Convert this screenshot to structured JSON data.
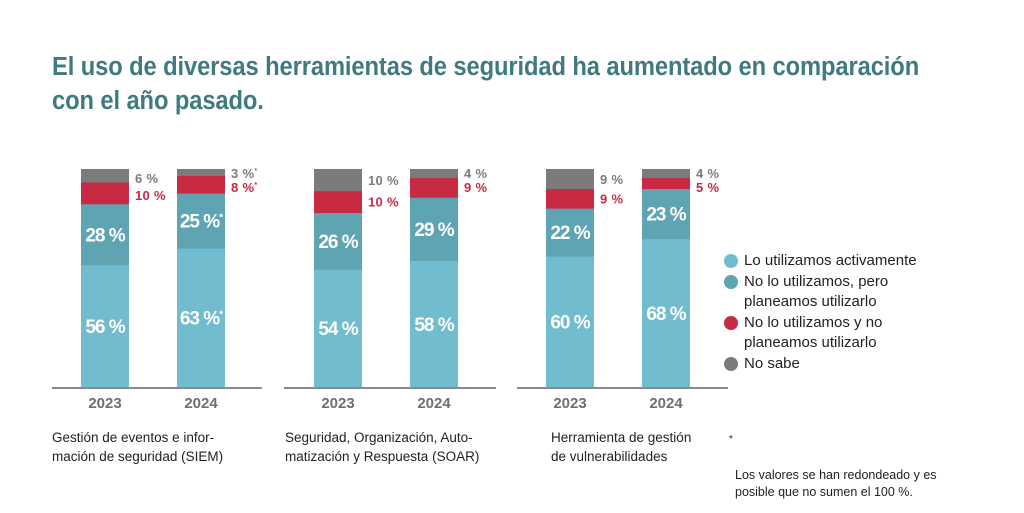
{
  "title": "El uso de diversas herramientas de seguridad ha aumentado en comparación con el año pasado.",
  "colors": {
    "title": "#3f7a80",
    "active": "#72bccf",
    "planned": "#5ea4b3",
    "not_planned": "#c92a43",
    "unknown": "#7b7b7b",
    "axis": "#8a8a8a",
    "year_label": "#6e6e6e"
  },
  "chart_data": [
    {
      "type": "bar",
      "stacked": true,
      "title": "Gestión de eventos e información de seguridad (SIEM)",
      "categories": [
        "2023",
        "2024"
      ],
      "series": [
        {
          "name": "Lo utilizamos activamente",
          "values": [
            56,
            63
          ],
          "labels": [
            "56 %",
            "63 %*"
          ]
        },
        {
          "name": "No lo utilizamos, pero planeamos utilizarlo",
          "values": [
            28,
            25
          ],
          "labels": [
            "28 %",
            "25 %*"
          ]
        },
        {
          "name": "No lo utilizamos y no planeamos utilizarlo",
          "values": [
            10,
            8
          ],
          "labels": [
            "10 %",
            "8 %*"
          ]
        },
        {
          "name": "No sabe",
          "values": [
            6,
            3
          ],
          "labels": [
            "6 %",
            "3 %*"
          ]
        }
      ],
      "ylim": [
        0,
        100
      ]
    },
    {
      "type": "bar",
      "stacked": true,
      "title": "Seguridad, Organización, Automatización y Respuesta (SOAR)",
      "categories": [
        "2023",
        "2024"
      ],
      "series": [
        {
          "name": "Lo utilizamos activamente",
          "values": [
            54,
            58
          ],
          "labels": [
            "54 %",
            "58 %"
          ]
        },
        {
          "name": "No lo utilizamos, pero planeamos utilizarlo",
          "values": [
            26,
            29
          ],
          "labels": [
            "26 %",
            "29 %"
          ]
        },
        {
          "name": "No lo utilizamos y no planeamos utilizarlo",
          "values": [
            10,
            9
          ],
          "labels": [
            "10 %",
            "9 %"
          ]
        },
        {
          "name": "No sabe",
          "values": [
            10,
            4
          ],
          "labels": [
            "10 %",
            "4 %"
          ]
        }
      ],
      "ylim": [
        0,
        100
      ]
    },
    {
      "type": "bar",
      "stacked": true,
      "title": "Herramienta de gestión de vulnerabilidades",
      "categories": [
        "2023",
        "2024"
      ],
      "series": [
        {
          "name": "Lo utilizamos activamente",
          "values": [
            60,
            68
          ],
          "labels": [
            "60 %",
            "68 %"
          ]
        },
        {
          "name": "No lo utilizamos, pero planeamos utilizarlo",
          "values": [
            22,
            23
          ],
          "labels": [
            "22 %",
            "23 %"
          ]
        },
        {
          "name": "No lo utilizamos y no planeamos utilizarlo",
          "values": [
            9,
            5
          ],
          "labels": [
            "9 %",
            "5 %"
          ]
        },
        {
          "name": "No sabe",
          "values": [
            9,
            4
          ],
          "labels": [
            "9 %",
            "4 %"
          ]
        }
      ],
      "ylim": [
        0,
        100
      ]
    }
  ],
  "captions": [
    "Gestión de eventos e infor-\nmación de seguridad (SIEM)",
    "Seguridad, Organización, Auto-\nmatización y Respuesta (SOAR)",
    "Herramienta de gestión\nde vulnerabilidades"
  ],
  "legend": [
    {
      "label": "Lo utilizamos activamente",
      "color": "#72bccf"
    },
    {
      "label": "No lo utilizamos, pero\nplaneamos utilizarlo",
      "color": "#5ea4b3"
    },
    {
      "label": "No lo utilizamos y no\nplaneamos utilizarlo",
      "color": "#c92a43"
    },
    {
      "label": "No sabe",
      "color": "#7b7b7b"
    }
  ],
  "footnote": {
    "marker": "*",
    "text": "Los valores se han redondeado y es\nposible que no sumen el 100 %."
  }
}
